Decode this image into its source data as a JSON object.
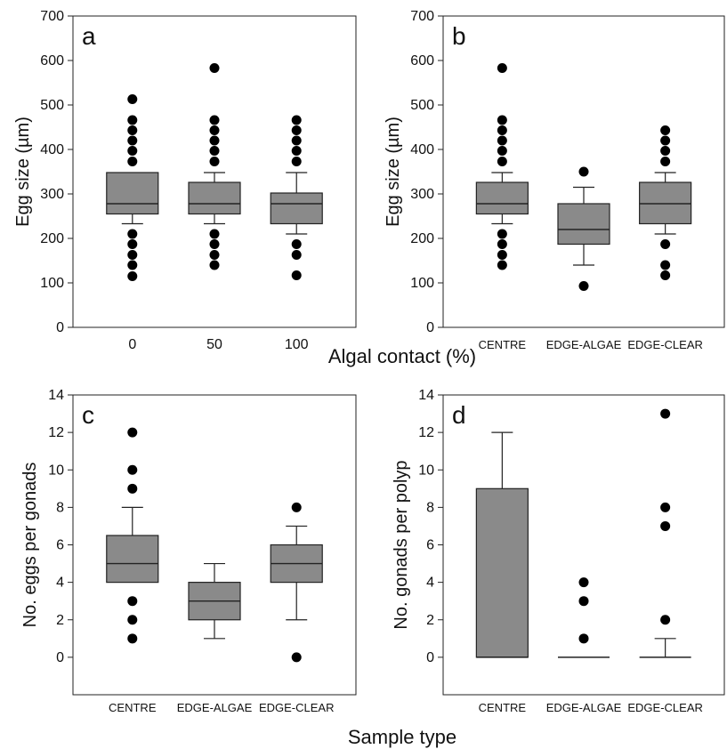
{
  "figure": {
    "shared_xlabel_top": "Algal contact (%)",
    "shared_xlabel_bottom": "Sample type"
  },
  "chart_data": [
    {
      "type": "box",
      "panel": "a",
      "xlabel": "Algal contact (%)",
      "ylabel": "Egg size (µm)",
      "ylim": [
        0,
        700
      ],
      "yticks": [
        0,
        100,
        200,
        300,
        400,
        500,
        600,
        700
      ],
      "categories": [
        "0",
        "50",
        "100"
      ],
      "boxes": [
        {
          "category": "0",
          "q1": 255,
          "median": 278,
          "q3": 348,
          "whisker_low": 233,
          "whisker_high": 348,
          "outliers": [
            115,
            140,
            163,
            187,
            210,
            373,
            397,
            420,
            443,
            466,
            513
          ]
        },
        {
          "category": "50",
          "q1": 255,
          "median": 278,
          "q3": 326,
          "whisker_low": 233,
          "whisker_high": 348,
          "outliers": [
            140,
            163,
            187,
            210,
            373,
            397,
            420,
            443,
            466,
            583
          ]
        },
        {
          "category": "100",
          "q1": 233,
          "median": 278,
          "q3": 302,
          "whisker_low": 210,
          "whisker_high": 348,
          "outliers": [
            117,
            163,
            187,
            373,
            397,
            420,
            443,
            466
          ]
        }
      ]
    },
    {
      "type": "box",
      "panel": "b",
      "xlabel": "",
      "ylabel": "Egg size (µm)",
      "ylim": [
        0,
        700
      ],
      "yticks": [
        0,
        100,
        200,
        300,
        400,
        500,
        600,
        700
      ],
      "categories": [
        "CENTRE",
        "EDGE-ALGAE",
        "EDGE-CLEAR"
      ],
      "boxes": [
        {
          "category": "CENTRE",
          "q1": 255,
          "median": 278,
          "q3": 326,
          "whisker_low": 233,
          "whisker_high": 348,
          "outliers": [
            140,
            163,
            187,
            210,
            373,
            397,
            420,
            443,
            466,
            583
          ]
        },
        {
          "category": "EDGE-ALGAE",
          "q1": 187,
          "median": 220,
          "q3": 278,
          "whisker_low": 140,
          "whisker_high": 315,
          "outliers": [
            93,
            350
          ]
        },
        {
          "category": "EDGE-CLEAR",
          "q1": 233,
          "median": 278,
          "q3": 326,
          "whisker_low": 210,
          "whisker_high": 348,
          "outliers": [
            117,
            140,
            187,
            373,
            397,
            420,
            443
          ]
        }
      ]
    },
    {
      "type": "box",
      "panel": "c",
      "xlabel": "Sample type",
      "ylabel": "No. eggs per gonads",
      "ylim": [
        -2,
        14
      ],
      "yticks": [
        0,
        2,
        4,
        6,
        8,
        10,
        12,
        14
      ],
      "categories": [
        "CENTRE",
        "EDGE-ALGAE",
        "EDGE-CLEAR"
      ],
      "boxes": [
        {
          "category": "CENTRE",
          "q1": 4,
          "median": 5,
          "q3": 6.5,
          "whisker_low": 4,
          "whisker_high": 8,
          "outliers": [
            1,
            2,
            3,
            9,
            10,
            12
          ]
        },
        {
          "category": "EDGE-ALGAE",
          "q1": 2,
          "median": 3,
          "q3": 4,
          "whisker_low": 1,
          "whisker_high": 5,
          "outliers": []
        },
        {
          "category": "EDGE-CLEAR",
          "q1": 4,
          "median": 5,
          "q3": 6,
          "whisker_low": 2,
          "whisker_high": 7,
          "outliers": [
            0,
            8
          ]
        }
      ]
    },
    {
      "type": "box",
      "panel": "d",
      "xlabel": "Sample type",
      "ylabel": "No. gonads per polyp",
      "ylim": [
        -2,
        14
      ],
      "yticks": [
        0,
        2,
        4,
        6,
        8,
        10,
        12,
        14
      ],
      "categories": [
        "CENTRE",
        "EDGE-ALGAE",
        "EDGE-CLEAR"
      ],
      "boxes": [
        {
          "category": "CENTRE",
          "q1": 0,
          "median": 0,
          "q3": 9,
          "whisker_low": 0,
          "whisker_high": 12,
          "outliers": []
        },
        {
          "category": "EDGE-ALGAE",
          "q1": 0,
          "median": 0,
          "q3": 0,
          "whisker_low": 0,
          "whisker_high": 0,
          "outliers": [
            1,
            3,
            4
          ]
        },
        {
          "category": "EDGE-CLEAR",
          "q1": 0,
          "median": 0,
          "q3": 0,
          "whisker_low": 0,
          "whisker_high": 1,
          "outliers": [
            2,
            7,
            8,
            13
          ]
        }
      ]
    }
  ]
}
